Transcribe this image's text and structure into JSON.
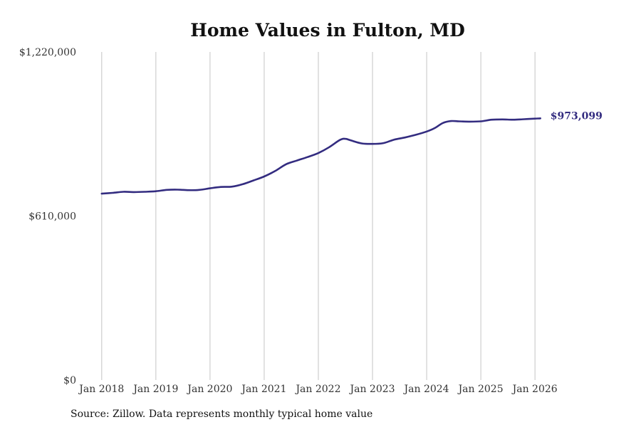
{
  "chart_data": {
    "type": "line",
    "title": "Home Values in Fulton, MD",
    "xlabel": "",
    "ylabel": "",
    "ylim": [
      0,
      1220000
    ],
    "y_ticks": [
      {
        "value": 0,
        "label": "$0"
      },
      {
        "value": 610000,
        "label": "$610,000"
      },
      {
        "value": 1220000,
        "label": "$1,220,000"
      }
    ],
    "x_ticks": [
      {
        "value": 2018.0,
        "label": "Jan 2018"
      },
      {
        "value": 2019.0,
        "label": "Jan 2019"
      },
      {
        "value": 2020.0,
        "label": "Jan 2020"
      },
      {
        "value": 2021.0,
        "label": "Jan 2021"
      },
      {
        "value": 2022.0,
        "label": "Jan 2022"
      },
      {
        "value": 2023.0,
        "label": "Jan 2023"
      },
      {
        "value": 2024.0,
        "label": "Jan 2024"
      },
      {
        "value": 2025.0,
        "label": "Jan 2025"
      },
      {
        "value": 2026.0,
        "label": "Jan 2026"
      }
    ],
    "xlim": [
      2017.7,
      2027.3
    ],
    "grid": "vertical",
    "series": [
      {
        "name": "Typical home value",
        "color": "#332c80",
        "x": [
          2018.0,
          2018.2,
          2018.4,
          2018.6,
          2018.8,
          2019.0,
          2019.2,
          2019.4,
          2019.6,
          2019.8,
          2020.0,
          2020.2,
          2020.4,
          2020.6,
          2020.8,
          2021.0,
          2021.2,
          2021.4,
          2021.6,
          2021.8,
          2022.0,
          2022.2,
          2022.4,
          2022.5,
          2022.6,
          2022.8,
          2023.0,
          2023.2,
          2023.4,
          2023.6,
          2023.8,
          2024.0,
          2024.15,
          2024.3,
          2024.45,
          2024.6,
          2024.8,
          2025.0,
          2025.2,
          2025.4,
          2025.6,
          2025.8,
          2026.0,
          2026.1
        ],
        "values": [
          693000,
          696000,
          700000,
          699000,
          700000,
          702000,
          707000,
          708000,
          706000,
          707000,
          713000,
          718000,
          719000,
          728000,
          742000,
          757000,
          777000,
          802000,
          816000,
          829000,
          844000,
          866000,
          893000,
          897000,
          891000,
          880000,
          878000,
          881000,
          894000,
          902000,
          912000,
          924000,
          937000,
          956000,
          963000,
          962000,
          961000,
          962000,
          968000,
          969000,
          968000,
          970000,
          972000,
          973099
        ]
      }
    ],
    "annotations": [
      {
        "text": "$973,099",
        "x": 2026.1,
        "value": 973099,
        "color": "#332c80"
      }
    ],
    "source": "Source: Zillow. Data represents monthly typical home value"
  }
}
